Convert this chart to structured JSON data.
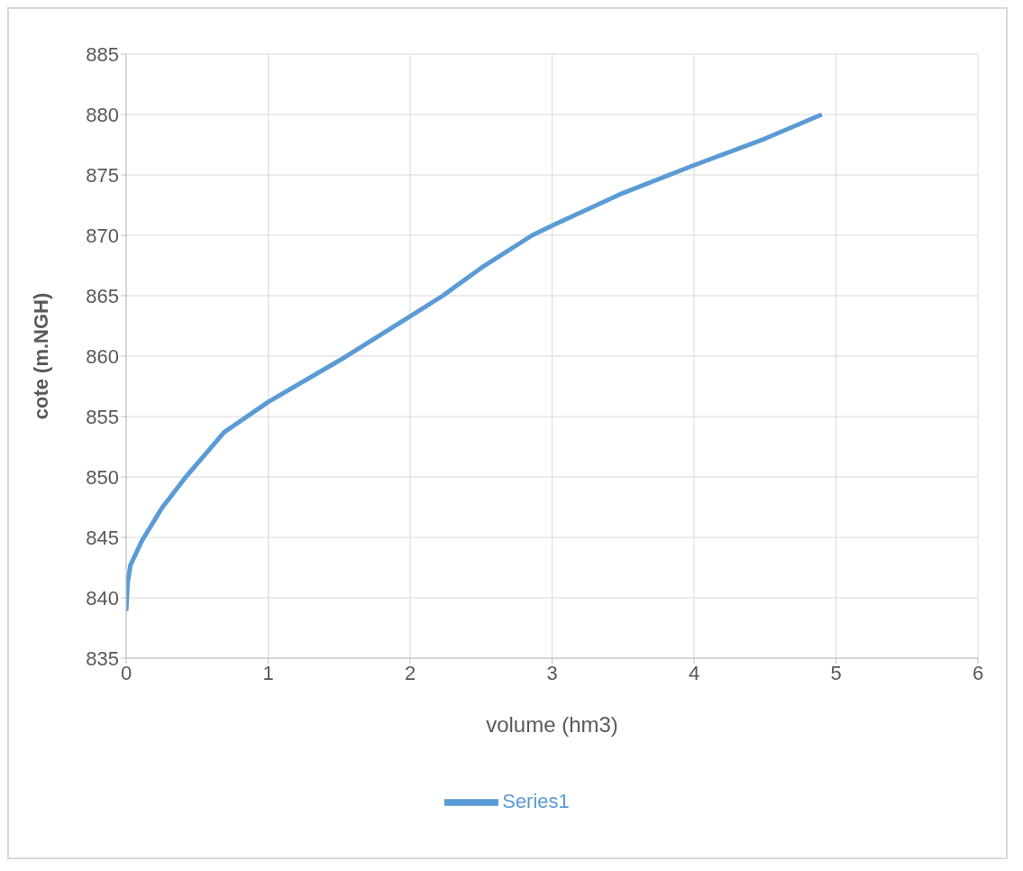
{
  "chart_data": {
    "type": "line",
    "xlabel": "volume (hm3)",
    "ylabel": "cote (m.NGH)",
    "x": [
      0,
      0.01,
      0.03,
      0.11,
      0.25,
      0.42,
      0.69,
      1,
      1.51,
      2,
      2.23,
      2.5,
      2.86,
      3,
      3.5,
      4,
      4.5,
      4.9
    ],
    "series": [
      {
        "name": "Series1",
        "color": "#5b9bd5",
        "values": [
          838.9,
          841.2,
          842.7,
          844.7,
          847.4,
          850,
          853.7,
          856.2,
          859.7,
          863.3,
          865,
          867.3,
          870,
          870.8,
          873.5,
          875.8,
          878,
          880
        ]
      }
    ],
    "xlim": [
      0,
      6
    ],
    "xticks": [
      0,
      1,
      2,
      3,
      4,
      5,
      6
    ],
    "ylim": [
      835,
      885
    ],
    "yticks": [
      835,
      840,
      845,
      850,
      855,
      860,
      865,
      870,
      875,
      880,
      885
    ],
    "grid": true,
    "legend": "bottom",
    "marker": "none",
    "line_style": "solid"
  }
}
